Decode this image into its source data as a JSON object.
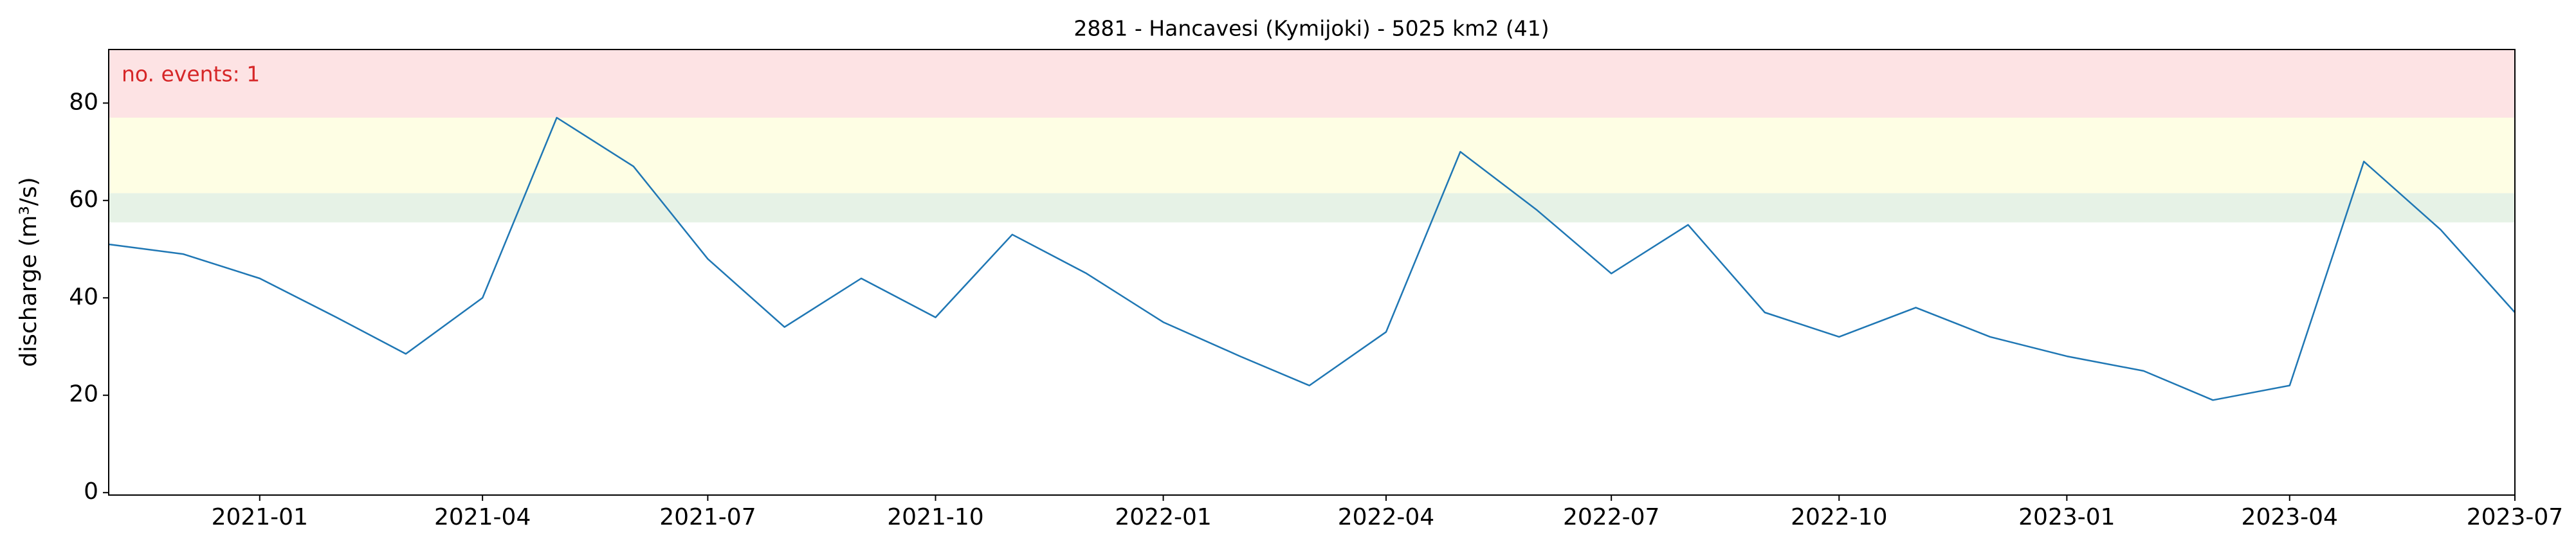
{
  "chart_data": {
    "type": "line",
    "title": "2881 - Hancavesi (Kymijoki) - 5025 km2 (41)",
    "y_label": "discharge (m³/s)",
    "annotation": "no. events: 1",
    "annotation_color": "#d62728",
    "x": [
      "2020-11",
      "2020-12",
      "2021-01",
      "2021-02",
      "2021-03",
      "2021-04",
      "2021-05",
      "2021-06",
      "2021-07",
      "2021-08",
      "2021-09",
      "2021-10",
      "2021-11",
      "2021-12",
      "2022-01",
      "2022-02",
      "2022-03",
      "2022-04",
      "2022-05",
      "2022-06",
      "2022-07",
      "2022-08",
      "2022-09",
      "2022-10",
      "2022-11",
      "2022-12",
      "2023-01",
      "2023-02",
      "2023-03",
      "2023-04",
      "2023-05",
      "2023-06",
      "2023-07"
    ],
    "series": [
      {
        "name": "discharge",
        "color": "#1f77b4",
        "values": [
          51,
          49,
          44,
          36,
          28.5,
          40,
          77,
          67,
          48,
          34,
          44,
          36,
          53,
          45,
          35,
          28,
          22,
          33,
          70,
          58,
          45,
          55,
          37,
          32,
          38,
          32,
          28,
          25,
          19,
          22,
          68,
          54,
          37
        ]
      }
    ],
    "xlim": [
      "2020-11",
      "2023-07"
    ],
    "xticks": [
      "2021-01",
      "2021-04",
      "2021-07",
      "2021-10",
      "2022-01",
      "2022-04",
      "2022-07",
      "2022-10",
      "2023-01",
      "2023-04",
      "2023-07"
    ],
    "ylim": [
      -0.5,
      91
    ],
    "yticks": [
      0,
      20,
      40,
      60,
      80
    ],
    "bands": [
      {
        "from": 55.5,
        "to": 61.5,
        "color": "#e6f2e6"
      },
      {
        "from": 61.5,
        "to": 77,
        "color": "#fefee4"
      },
      {
        "from": 77,
        "to": 91,
        "color": "#fde3e4"
      }
    ],
    "grid": false
  }
}
